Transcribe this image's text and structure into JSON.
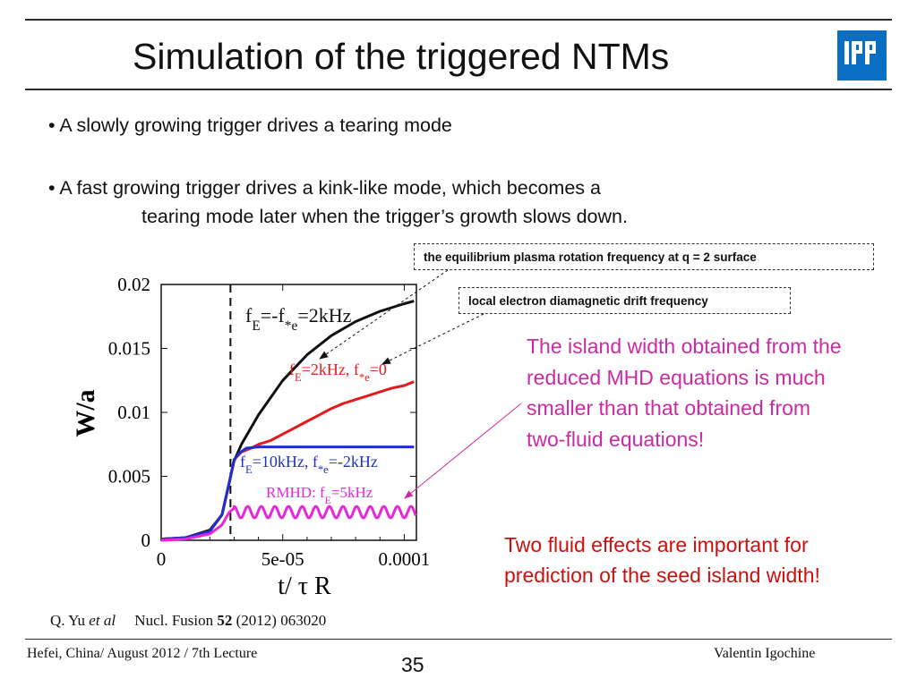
{
  "slide": {
    "title": "Simulation of the triggered NTMs",
    "bullets": [
      "• A slowly growing trigger drives a tearing mode",
      "• A fast growing trigger drives a kink-like mode, which becomes a"
    ],
    "bullet2_cont": "tearing mode later when the trigger’s growth slows down.",
    "callout_rotation": "the equilibrium plasma rotation frequency at q = 2 surface",
    "callout_diamag": "local electron diamagnetic drift frequency",
    "note_pink": "The island width obtained from the reduced MHD equations is much smaller than that obtained from two-fluid equations!",
    "note_red": "Two fluid effects are important for prediction of the seed island width!",
    "ref_authors": "Q. Yu",
    "ref_etal": "et al",
    "ref_journal": "Nucl. Fusion",
    "ref_volume": "52",
    "ref_rest": "(2012) 063020",
    "footer_left": "Hefei, China/ August 2012 / 7th Lecture",
    "footer_right": "Valentin Igochine",
    "page_number": "35",
    "logo_text": "IPP"
  },
  "colors": {
    "black_curve": "#111111",
    "red_curve": "#e41a1c",
    "blue_curve": "#1f2fcf",
    "magenta_curve": "#e629d6",
    "pink_note": "#cc2aa3",
    "red_note": "#cc1010",
    "logo": "#0a6fc2"
  },
  "chart_data": {
    "type": "line",
    "xlabel": "t/ τ R",
    "ylabel": "W/a",
    "xlim": [
      0,
      0.000105
    ],
    "ylim": [
      0,
      0.02
    ],
    "x_ticks": [
      "0",
      "5e-05",
      "0.0001"
    ],
    "y_ticks": [
      "0",
      "0.005",
      "0.01",
      "0.015",
      "0.02"
    ],
    "vline_x": 2.85e-05,
    "series": [
      {
        "name": "fE=-f*e=2kHz",
        "label_main": "f",
        "label_sub1": "E",
        "label_mid": "=-f",
        "label_sub2": "*e",
        "label_end": "=2kHz",
        "color": "#111111",
        "points": [
          [
            0,
            0.0001
          ],
          [
            1e-05,
            0.0002
          ],
          [
            2e-05,
            0.0008
          ],
          [
            2.5e-05,
            0.002
          ],
          [
            2.8e-05,
            0.0045
          ],
          [
            3e-05,
            0.0062
          ],
          [
            3.3e-05,
            0.0075
          ],
          [
            4e-05,
            0.0098
          ],
          [
            5e-05,
            0.0125
          ],
          [
            6e-05,
            0.0145
          ],
          [
            7e-05,
            0.016
          ],
          [
            8e-05,
            0.0171
          ],
          [
            9e-05,
            0.0179
          ],
          [
            0.0001,
            0.0185
          ],
          [
            0.000104,
            0.0187
          ]
        ]
      },
      {
        "name": "fE=2kHz, f*e=0",
        "label_main": "f",
        "label_sub1": "E",
        "label_mid": "=2kHz, f",
        "label_sub2": "*e",
        "label_end": "=0",
        "color": "#e41a1c",
        "points": [
          [
            0,
            0.0001
          ],
          [
            1e-05,
            0.0002
          ],
          [
            2e-05,
            0.0007
          ],
          [
            2.5e-05,
            0.002
          ],
          [
            2.8e-05,
            0.0045
          ],
          [
            3e-05,
            0.0063
          ],
          [
            3.3e-05,
            0.0069
          ],
          [
            3.7e-05,
            0.0072
          ],
          [
            4e-05,
            0.0075
          ],
          [
            4.5e-05,
            0.0078
          ],
          [
            5e-05,
            0.0083
          ],
          [
            5.5e-05,
            0.0088
          ],
          [
            6e-05,
            0.0093
          ],
          [
            6.5e-05,
            0.0098
          ],
          [
            7e-05,
            0.0103
          ],
          [
            7.5e-05,
            0.0107
          ],
          [
            8e-05,
            0.011
          ],
          [
            8.5e-05,
            0.0113
          ],
          [
            9e-05,
            0.0116
          ],
          [
            9.5e-05,
            0.0119
          ],
          [
            0.0001,
            0.0121
          ],
          [
            0.000104,
            0.0124
          ]
        ]
      },
      {
        "name": "fE=10kHz, f*e=-2kHz",
        "label_main": "f",
        "label_sub1": "E",
        "label_mid": "=10kHz, f",
        "label_sub2": "*e",
        "label_end": "=-2kHz",
        "color": "#1f2fcf",
        "points": [
          [
            0,
            0.0001
          ],
          [
            1e-05,
            0.0002
          ],
          [
            2e-05,
            0.0007
          ],
          [
            2.5e-05,
            0.002
          ],
          [
            2.8e-05,
            0.0045
          ],
          [
            3e-05,
            0.0063
          ],
          [
            3.2e-05,
            0.0068
          ],
          [
            3.5e-05,
            0.0072
          ],
          [
            4e-05,
            0.0073
          ],
          [
            6e-05,
            0.0073
          ],
          [
            8e-05,
            0.0073
          ],
          [
            0.000104,
            0.0073
          ]
        ]
      },
      {
        "name": "RMHD: fE=5kHz",
        "label_main": "RMHD: f",
        "label_sub1": "E",
        "label_mid": "=5kHz",
        "label_sub2": "",
        "label_end": "",
        "color": "#e629d6",
        "points": [
          [
            0,
            0.0
          ],
          [
            1e-05,
            0.0001
          ],
          [
            2e-05,
            0.0005
          ],
          [
            2.5e-05,
            0.0012
          ],
          [
            2.8e-05,
            0.0022
          ],
          [
            3e-05,
            0.0025
          ]
        ],
        "oscillation": {
          "mean": 0.0022,
          "amplitude": 0.00045,
          "period": 5.6e-06
        }
      }
    ]
  }
}
